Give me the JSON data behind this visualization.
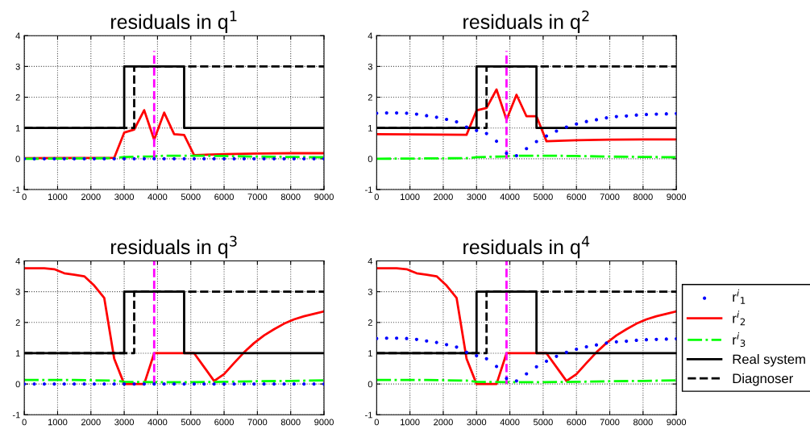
{
  "chart_data": [
    {
      "type": "line",
      "title": "residuals in q$^{1}$",
      "xlim": [
        0,
        9000
      ],
      "ylim": [
        -1,
        4
      ],
      "xticks": [
        0,
        1000,
        2000,
        3000,
        4000,
        5000,
        6000,
        7000,
        8000,
        9000
      ],
      "yticks": [
        -1,
        0,
        1,
        2,
        3,
        4
      ],
      "grid": true,
      "x": [
        0,
        300,
        600,
        900,
        1200,
        1500,
        1800,
        2100,
        2400,
        2700,
        3000,
        3300,
        3600,
        3900,
        4200,
        4500,
        4800,
        5100,
        5400,
        5700,
        6000,
        6300,
        6600,
        6900,
        7200,
        7500,
        7800,
        8100,
        8400,
        8700,
        9000
      ],
      "series": [
        {
          "type": "scatter",
          "marker": "circle",
          "color": "#0000ff",
          "values": [
            0,
            0,
            0,
            0,
            0,
            0,
            0,
            0,
            0,
            0,
            0,
            0,
            0,
            0,
            0,
            0,
            0,
            0,
            0,
            0,
            0,
            0,
            0,
            0,
            0,
            0,
            0,
            0,
            0,
            0,
            0
          ]
        },
        {
          "type": "line",
          "line_style": "solid",
          "color": "#ff0000",
          "x": [
            0,
            2700,
            3000,
            3300,
            3600,
            3900,
            4200,
            4500,
            4800,
            5100,
            6000,
            7000,
            8000,
            9000
          ],
          "values": [
            0.02,
            0.03,
            0.85,
            0.95,
            1.58,
            0.62,
            1.5,
            0.8,
            0.77,
            0.12,
            0.15,
            0.17,
            0.18,
            0.18
          ]
        },
        {
          "type": "line",
          "line_style": "dashdot",
          "color": "#00ff00",
          "x": [
            0,
            2700,
            3000,
            3900,
            4200,
            5100,
            6000,
            7000,
            8000,
            9000
          ],
          "values": [
            0,
            0.02,
            0.06,
            0.08,
            0.1,
            0.1,
            0.09,
            0.07,
            0.06,
            0.05
          ]
        },
        {
          "type": "line",
          "line_style": "solid",
          "color": "#000000",
          "x": [
            0,
            3000,
            3000,
            4800,
            4800,
            9000
          ],
          "values": [
            1,
            1,
            3,
            3,
            1,
            1
          ]
        },
        {
          "type": "line",
          "line_style": "dashed",
          "color": "#000000",
          "x": [
            0,
            3300,
            3300,
            9000
          ],
          "values": [
            1,
            1,
            3,
            3
          ]
        },
        {
          "type": "line",
          "line_style": "dashed",
          "color": "#ff00ff",
          "x": [
            3900,
            3900
          ],
          "values": [
            0,
            3.5
          ]
        }
      ]
    },
    {
      "type": "line",
      "title": "residuals in q$^{2}$",
      "xlim": [
        0,
        9000
      ],
      "ylim": [
        -1,
        4
      ],
      "xticks": [
        0,
        1000,
        2000,
        3000,
        4000,
        5000,
        6000,
        7000,
        8000,
        9000
      ],
      "yticks": [
        -1,
        0,
        1,
        2,
        3,
        4
      ],
      "grid": true,
      "x": [
        0,
        300,
        600,
        900,
        1200,
        1500,
        1800,
        2100,
        2400,
        2700,
        3000,
        3300,
        3600,
        3900,
        4200,
        4500,
        4800,
        5100,
        5400,
        5700,
        6000,
        6300,
        6600,
        6900,
        7200,
        7500,
        7800,
        8100,
        8400,
        8700,
        9000
      ],
      "series": [
        {
          "type": "scatter",
          "marker": "circle",
          "color": "#0000ff",
          "values": [
            1.48,
            1.49,
            1.49,
            1.48,
            1.45,
            1.4,
            1.35,
            1.28,
            1.2,
            1.03,
            0.92,
            0.82,
            0.57,
            0.18,
            0.1,
            0.33,
            0.56,
            0.74,
            0.9,
            1.03,
            1.13,
            1.21,
            1.27,
            1.33,
            1.37,
            1.39,
            1.42,
            1.44,
            1.45,
            1.46,
            1.47
          ]
        },
        {
          "type": "line",
          "line_style": "solid",
          "color": "#ff0000",
          "x": [
            0,
            2700,
            3000,
            3300,
            3600,
            3900,
            4200,
            4500,
            4800,
            5100,
            6000,
            7000,
            8000,
            9000
          ],
          "values": [
            0.8,
            0.78,
            1.57,
            1.65,
            2.25,
            1.27,
            2.08,
            1.38,
            1.38,
            0.57,
            0.6,
            0.62,
            0.63,
            0.63
          ]
        },
        {
          "type": "line",
          "line_style": "dashdot",
          "color": "#00ff00",
          "x": [
            0,
            2700,
            3000,
            3900,
            4200,
            5100,
            6000,
            7000,
            8000,
            9000
          ],
          "values": [
            0,
            0.02,
            0.05,
            0.08,
            0.1,
            0.1,
            0.09,
            0.07,
            0.06,
            0.05
          ]
        },
        {
          "type": "line",
          "line_style": "solid",
          "color": "#000000",
          "x": [
            0,
            3000,
            3000,
            4800,
            4800,
            9000
          ],
          "values": [
            1,
            1,
            3,
            3,
            1,
            1
          ]
        },
        {
          "type": "line",
          "line_style": "dashed",
          "color": "#000000",
          "x": [
            0,
            3300,
            3300,
            9000
          ],
          "values": [
            1,
            1,
            3,
            3
          ]
        },
        {
          "type": "line",
          "line_style": "dashed",
          "color": "#ff00ff",
          "x": [
            3900,
            3900
          ],
          "values": [
            0,
            3.5
          ]
        }
      ]
    },
    {
      "type": "line",
      "title": "residuals in q$^{3}$",
      "xlim": [
        0,
        9000
      ],
      "ylim": [
        -1,
        4
      ],
      "xticks": [
        0,
        1000,
        2000,
        3000,
        4000,
        5000,
        6000,
        7000,
        8000,
        9000
      ],
      "yticks": [
        -1,
        0,
        1,
        2,
        3,
        4
      ],
      "grid": true,
      "x": [
        0,
        300,
        600,
        900,
        1200,
        1500,
        1800,
        2100,
        2400,
        2700,
        3000,
        3300,
        3600,
        3900,
        4200,
        4500,
        4800,
        5100,
        5400,
        5700,
        6000,
        6300,
        6600,
        6900,
        7200,
        7500,
        7800,
        8100,
        8400,
        8700,
        9000
      ],
      "series": [
        {
          "type": "scatter",
          "marker": "circle",
          "color": "#0000ff",
          "values": [
            0,
            0,
            0,
            0,
            0,
            0,
            0,
            0,
            0,
            0,
            0,
            0,
            0,
            0,
            0,
            0,
            0,
            0,
            0,
            0,
            0,
            0,
            0,
            0,
            0,
            0,
            0,
            0,
            0,
            0,
            0
          ]
        },
        {
          "type": "line",
          "line_style": "solid",
          "color": "#ff0000",
          "values": [
            3.76,
            3.76,
            3.76,
            3.73,
            3.6,
            3.55,
            3.5,
            3.2,
            2.8,
            0.82,
            0,
            0,
            0,
            1,
            1,
            1,
            1,
            1,
            0.55,
            0.1,
            0.32,
            0.68,
            1.03,
            1.33,
            1.58,
            1.78,
            1.96,
            2.1,
            2.2,
            2.28,
            2.36
          ]
        },
        {
          "type": "line",
          "line_style": "dashdot",
          "color": "#00ff00",
          "x": [
            0,
            1500,
            2700,
            3000,
            3900,
            5000,
            6000,
            7000,
            8000,
            9000
          ],
          "values": [
            0.13,
            0.13,
            0.11,
            0.07,
            0.06,
            0.06,
            0.07,
            0.09,
            0.1,
            0.12
          ]
        },
        {
          "type": "line",
          "line_style": "solid",
          "color": "#000000",
          "x": [
            0,
            3000,
            3000,
            4800,
            4800,
            9000
          ],
          "values": [
            1,
            1,
            3,
            3,
            1,
            1
          ]
        },
        {
          "type": "line",
          "line_style": "dashed",
          "color": "#000000",
          "x": [
            0,
            3300,
            3300,
            9000
          ],
          "values": [
            1,
            1,
            3,
            3
          ]
        },
        {
          "type": "line",
          "line_style": "dashed",
          "color": "#ff00ff",
          "x": [
            3900,
            3900
          ],
          "values": [
            0,
            4
          ]
        }
      ]
    },
    {
      "type": "line",
      "title": "residuals in q$^{4}$",
      "xlim": [
        0,
        9000
      ],
      "ylim": [
        -1,
        4
      ],
      "xticks": [
        0,
        1000,
        2000,
        3000,
        4000,
        5000,
        6000,
        7000,
        8000,
        9000
      ],
      "yticks": [
        -1,
        0,
        1,
        2,
        3,
        4
      ],
      "grid": true,
      "legend": "right",
      "x": [
        0,
        300,
        600,
        900,
        1200,
        1500,
        1800,
        2100,
        2400,
        2700,
        3000,
        3300,
        3600,
        3900,
        4200,
        4500,
        4800,
        5100,
        5400,
        5700,
        6000,
        6300,
        6600,
        6900,
        7200,
        7500,
        7800,
        8100,
        8400,
        8700,
        9000
      ],
      "series": [
        {
          "name": "r$^{i}$$_{1}$",
          "type": "scatter",
          "marker": "circle",
          "color": "#0000ff",
          "values": [
            1.48,
            1.49,
            1.49,
            1.48,
            1.45,
            1.4,
            1.35,
            1.28,
            1.2,
            1.03,
            0.92,
            0.82,
            0.57,
            0.18,
            0.1,
            0.33,
            0.56,
            0.74,
            0.9,
            1.03,
            1.13,
            1.21,
            1.27,
            1.33,
            1.37,
            1.39,
            1.42,
            1.44,
            1.45,
            1.46,
            1.47
          ]
        },
        {
          "name": "r$^{i}$$_{2}$",
          "type": "line",
          "line_style": "solid",
          "color": "#ff0000",
          "values": [
            3.76,
            3.76,
            3.76,
            3.73,
            3.6,
            3.55,
            3.5,
            3.2,
            2.8,
            0.82,
            0,
            0,
            0,
            1,
            1,
            1,
            1,
            1,
            0.55,
            0.1,
            0.32,
            0.68,
            1.03,
            1.33,
            1.58,
            1.78,
            1.96,
            2.1,
            2.2,
            2.28,
            2.36
          ]
        },
        {
          "name": "r$^{i}$$_{3}$",
          "type": "line",
          "line_style": "dashdot",
          "color": "#00ff00",
          "x": [
            0,
            1500,
            2700,
            3000,
            3900,
            5000,
            6000,
            7000,
            8000,
            9000
          ],
          "values": [
            0.13,
            0.13,
            0.11,
            0.07,
            0.06,
            0.06,
            0.07,
            0.09,
            0.1,
            0.12
          ]
        },
        {
          "name": "Real system",
          "type": "line",
          "line_style": "solid",
          "color": "#000000",
          "x": [
            0,
            3000,
            3000,
            4800,
            4800,
            9000
          ],
          "values": [
            1,
            1,
            3,
            3,
            1,
            1
          ]
        },
        {
          "name": "Diagnoser",
          "type": "line",
          "line_style": "dashed",
          "color": "#000000",
          "x": [
            0,
            3300,
            3300,
            9000
          ],
          "values": [
            1,
            1,
            3,
            3
          ]
        },
        {
          "type": "line",
          "line_style": "dashed",
          "color": "#ff00ff",
          "x": [
            3900,
            3900
          ],
          "values": [
            0,
            4
          ]
        }
      ]
    }
  ]
}
